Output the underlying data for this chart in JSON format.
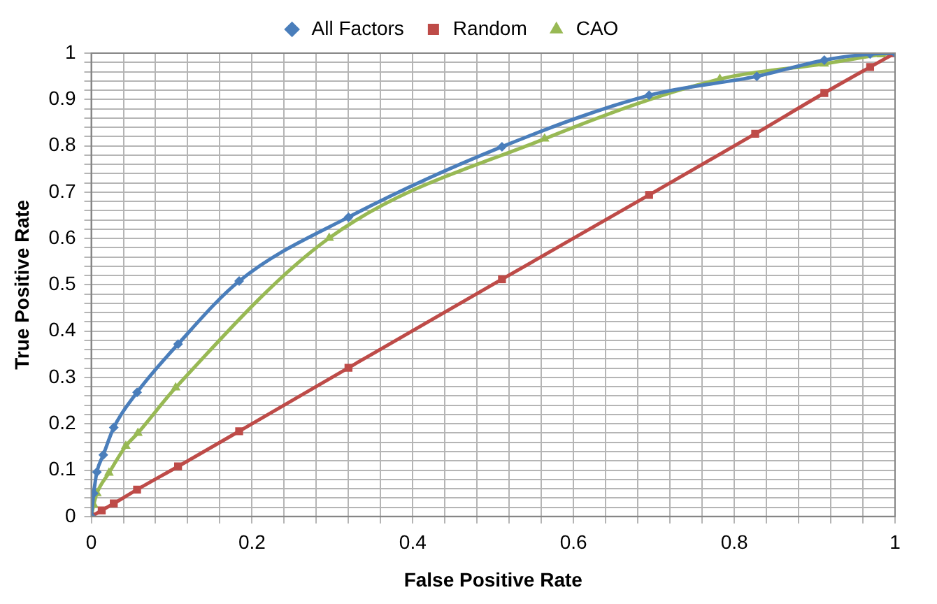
{
  "chart_data": {
    "type": "line",
    "xlabel": "False Positive Rate",
    "ylabel": "True Positive Rate",
    "grid": true,
    "legend": "top",
    "xlim": [
      0,
      1
    ],
    "ylim": [
      0,
      1
    ],
    "xticks": [
      0,
      {
        "value": 0.04,
        "label": null
      },
      {
        "value": 0.08,
        "label": null
      },
      {
        "value": 0.12,
        "label": null
      },
      {
        "value": 0.16,
        "label": null
      },
      0.2,
      {
        "value": 0.24,
        "label": null
      },
      {
        "value": 0.28,
        "label": null
      },
      {
        "value": 0.32,
        "label": null
      },
      {
        "value": 0.36,
        "label": null
      },
      0.4,
      {
        "value": 0.44,
        "label": null
      },
      {
        "value": 0.48,
        "label": null
      },
      {
        "value": 0.52,
        "label": null
      },
      {
        "value": 0.56,
        "label": null
      },
      0.6,
      {
        "value": 0.64,
        "label": null
      },
      {
        "value": 0.68,
        "label": null
      },
      {
        "value": 0.72,
        "label": null
      },
      {
        "value": 0.76,
        "label": null
      },
      0.8,
      {
        "value": 0.84,
        "label": null
      },
      {
        "value": 0.88,
        "label": null
      },
      {
        "value": 0.92,
        "label": null
      },
      {
        "value": 0.96,
        "label": null
      },
      1
    ],
    "yticks": [
      0,
      {
        "value": 0.02,
        "label": null
      },
      {
        "value": 0.04,
        "label": null
      },
      {
        "value": 0.06,
        "label": null
      },
      {
        "value": 0.08,
        "label": null
      },
      0.1,
      {
        "value": 0.12,
        "label": null
      },
      {
        "value": 0.14,
        "label": null
      },
      {
        "value": 0.16,
        "label": null
      },
      {
        "value": 0.18,
        "label": null
      },
      0.2,
      {
        "value": 0.22,
        "label": null
      },
      {
        "value": 0.24,
        "label": null
      },
      {
        "value": 0.26,
        "label": null
      },
      {
        "value": 0.28,
        "label": null
      },
      0.3,
      {
        "value": 0.32,
        "label": null
      },
      {
        "value": 0.34,
        "label": null
      },
      {
        "value": 0.36,
        "label": null
      },
      {
        "value": 0.38,
        "label": null
      },
      0.4,
      {
        "value": 0.42,
        "label": null
      },
      {
        "value": 0.44,
        "label": null
      },
      {
        "value": 0.46,
        "label": null
      },
      {
        "value": 0.48,
        "label": null
      },
      0.5,
      {
        "value": 0.52,
        "label": null
      },
      {
        "value": 0.54,
        "label": null
      },
      {
        "value": 0.56,
        "label": null
      },
      {
        "value": 0.58,
        "label": null
      },
      0.6,
      {
        "value": 0.62,
        "label": null
      },
      {
        "value": 0.64,
        "label": null
      },
      {
        "value": 0.66,
        "label": null
      },
      {
        "value": 0.68,
        "label": null
      },
      0.7,
      {
        "value": 0.72,
        "label": null
      },
      {
        "value": 0.74,
        "label": null
      },
      {
        "value": 0.76,
        "label": null
      },
      {
        "value": 0.78,
        "label": null
      },
      0.8,
      {
        "value": 0.82,
        "label": null
      },
      {
        "value": 0.84,
        "label": null
      },
      {
        "value": 0.86,
        "label": null
      },
      {
        "value": 0.88,
        "label": null
      },
      0.9,
      {
        "value": 0.92,
        "label": null
      },
      {
        "value": 0.94,
        "label": null
      },
      {
        "value": 0.96,
        "label": null
      },
      {
        "value": 0.98,
        "label": null
      },
      1
    ],
    "series": [
      {
        "name": "All Factors",
        "color": "#4a7ebb",
        "marker": "diamond",
        "x": [
          0,
          0.003,
          0.007,
          0.015,
          0.028,
          0.057,
          0.108,
          0.184,
          0.32,
          0.511,
          0.694,
          0.828,
          0.912,
          0.969,
          1
        ],
        "values": [
          0,
          0.05,
          0.096,
          0.133,
          0.192,
          0.268,
          0.372,
          0.508,
          0.646,
          0.798,
          0.909,
          0.95,
          0.985,
          0.998,
          1
        ]
      },
      {
        "name": "Random",
        "color": "#be4b48",
        "marker": "square",
        "x": [
          0,
          0.013,
          0.028,
          0.057,
          0.108,
          0.184,
          0.32,
          0.511,
          0.694,
          0.826,
          0.912,
          0.969,
          1
        ],
        "values": [
          0,
          0.013,
          0.028,
          0.058,
          0.108,
          0.184,
          0.321,
          0.512,
          0.694,
          0.826,
          0.914,
          0.97,
          1
        ]
      },
      {
        "name": "CAO",
        "color": "#98b954",
        "marker": "triangle",
        "x": [
          0,
          0.003,
          0.007,
          0.022,
          0.043,
          0.058,
          0.105,
          0.296,
          0.564,
          0.782,
          0.912,
          0.983,
          1
        ],
        "values": [
          0,
          0.025,
          0.05,
          0.094,
          0.152,
          0.18,
          0.278,
          0.601,
          0.815,
          0.944,
          0.977,
          0.997,
          1
        ]
      }
    ]
  }
}
